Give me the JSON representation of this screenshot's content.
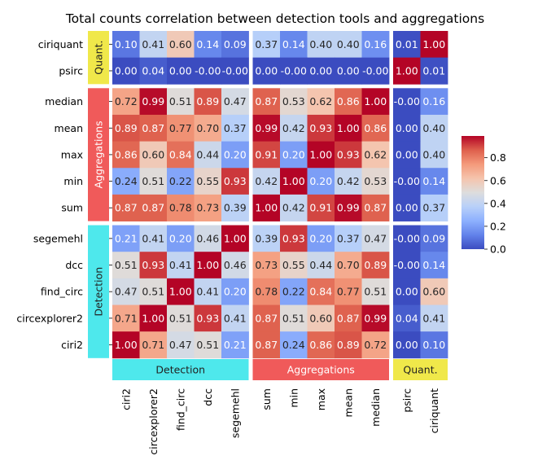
{
  "chart_data": {
    "type": "heatmap",
    "title": "Total counts correlation between detection tools and aggregations",
    "rows": [
      "ciriquant",
      "psirc",
      "median",
      "mean",
      "max",
      "min",
      "sum",
      "segemehl",
      "dcc",
      "find_circ",
      "circexplorer2",
      "ciri2"
    ],
    "cols": [
      "ciri2",
      "circexplorer2",
      "find_circ",
      "dcc",
      "segemehl",
      "sum",
      "min",
      "max",
      "mean",
      "median",
      "psirc",
      "ciriquant"
    ],
    "values": [
      [
        0.1,
        0.41,
        0.6,
        0.14,
        0.09,
        0.37,
        0.14,
        0.4,
        0.4,
        0.16,
        0.01,
        1.0
      ],
      [
        0.0,
        0.04,
        0.0,
        -0.0,
        -0.0,
        0.0,
        -0.0,
        0.0,
        0.0,
        -0.0,
        1.0,
        0.01
      ],
      [
        0.72,
        0.99,
        0.51,
        0.89,
        0.47,
        0.87,
        0.53,
        0.62,
        0.86,
        1.0,
        -0.0,
        0.16
      ],
      [
        0.89,
        0.87,
        0.77,
        0.7,
        0.37,
        0.99,
        0.42,
        0.93,
        1.0,
        0.86,
        0.0,
        0.4
      ],
      [
        0.86,
        0.6,
        0.84,
        0.44,
        0.2,
        0.91,
        0.2,
        1.0,
        0.93,
        0.62,
        0.0,
        0.4
      ],
      [
        0.24,
        0.51,
        0.22,
        0.55,
        0.93,
        0.42,
        1.0,
        0.2,
        0.42,
        0.53,
        -0.0,
        0.14
      ],
      [
        0.87,
        0.87,
        0.78,
        0.73,
        0.39,
        1.0,
        0.42,
        0.91,
        0.99,
        0.87,
        0.0,
        0.37
      ],
      [
        0.21,
        0.41,
        0.2,
        0.46,
        1.0,
        0.39,
        0.93,
        0.2,
        0.37,
        0.47,
        -0.0,
        0.09
      ],
      [
        0.51,
        0.93,
        0.41,
        1.0,
        0.46,
        0.73,
        0.55,
        0.44,
        0.7,
        0.89,
        -0.0,
        0.14
      ],
      [
        0.47,
        0.51,
        1.0,
        0.41,
        0.2,
        0.78,
        0.22,
        0.84,
        0.77,
        0.51,
        0.0,
        0.6
      ],
      [
        0.71,
        1.0,
        0.51,
        0.93,
        0.41,
        0.87,
        0.51,
        0.6,
        0.87,
        0.99,
        0.04,
        0.41
      ],
      [
        1.0,
        0.71,
        0.47,
        0.51,
        0.21,
        0.87,
        0.24,
        0.86,
        0.89,
        0.72,
        0.0,
        0.1
      ]
    ],
    "labels": [
      [
        "0.10",
        "0.41",
        "0.60",
        "0.14",
        "0.09",
        "0.37",
        "0.14",
        "0.40",
        "0.40",
        "0.16",
        "0.01",
        "1.00"
      ],
      [
        "0.00",
        "0.04",
        "0.00",
        "-0.00",
        "-0.00",
        "0.00",
        "-0.00",
        "0.00",
        "0.00",
        "-0.00",
        "1.00",
        "0.01"
      ],
      [
        "0.72",
        "0.99",
        "0.51",
        "0.89",
        "0.47",
        "0.87",
        "0.53",
        "0.62",
        "0.86",
        "1.00",
        "-0.00",
        "0.16"
      ],
      [
        "0.89",
        "0.87",
        "0.77",
        "0.70",
        "0.37",
        "0.99",
        "0.42",
        "0.93",
        "1.00",
        "0.86",
        "0.00",
        "0.40"
      ],
      [
        "0.86",
        "0.60",
        "0.84",
        "0.44",
        "0.20",
        "0.91",
        "0.20",
        "1.00",
        "0.93",
        "0.62",
        "0.00",
        "0.40"
      ],
      [
        "0.24",
        "0.51",
        "0.22",
        "0.55",
        "0.93",
        "0.42",
        "1.00",
        "0.20",
        "0.42",
        "0.53",
        "-0.00",
        "0.14"
      ],
      [
        "0.87",
        "0.87",
        "0.78",
        "0.73",
        "0.39",
        "1.00",
        "0.42",
        "0.91",
        "0.99",
        "0.87",
        "0.00",
        "0.37"
      ],
      [
        "0.21",
        "0.41",
        "0.20",
        "0.46",
        "1.00",
        "0.39",
        "0.93",
        "0.20",
        "0.37",
        "0.47",
        "-0.00",
        "0.09"
      ],
      [
        "0.51",
        "0.93",
        "0.41",
        "1.00",
        "0.46",
        "0.73",
        "0.55",
        "0.44",
        "0.70",
        "0.89",
        "-0.00",
        "0.14"
      ],
      [
        "0.47",
        "0.51",
        "1.00",
        "0.41",
        "0.20",
        "0.78",
        "0.22",
        "0.84",
        "0.77",
        "0.51",
        "0.00",
        "0.60"
      ],
      [
        "0.71",
        "1.00",
        "0.51",
        "0.93",
        "0.41",
        "0.87",
        "0.51",
        "0.60",
        "0.87",
        "0.99",
        "0.04",
        "0.41"
      ],
      [
        "1.00",
        "0.71",
        "0.47",
        "0.51",
        "0.21",
        "0.87",
        "0.24",
        "0.86",
        "0.89",
        "0.72",
        "0.00",
        "0.10"
      ]
    ],
    "row_groups": [
      {
        "label": "Quant.",
        "count": 2,
        "color": "#f0e84a",
        "text_color": "#222222"
      },
      {
        "label": "Aggregations",
        "count": 5,
        "color": "#f05a5a",
        "text_color": "#ffffff"
      },
      {
        "label": "Detection",
        "count": 5,
        "color": "#4ee8ec",
        "text_color": "#222222"
      }
    ],
    "col_groups": [
      {
        "label": "Detection",
        "count": 5,
        "color": "#4ee8ec",
        "text_color": "#222222"
      },
      {
        "label": "Aggregations",
        "count": 5,
        "color": "#f05a5a",
        "text_color": "#ffffff"
      },
      {
        "label": "Quant.",
        "count": 2,
        "color": "#f0e84a",
        "text_color": "#222222"
      }
    ],
    "colormap": "coolwarm",
    "vmin": 0.0,
    "vmax": 1.0,
    "colorbar_ticks": [
      "0.0",
      "0.2",
      "0.4",
      "0.6",
      "0.8"
    ],
    "colorbar_tick_values": [
      0.0,
      0.2,
      0.4,
      0.6,
      0.8
    ]
  }
}
